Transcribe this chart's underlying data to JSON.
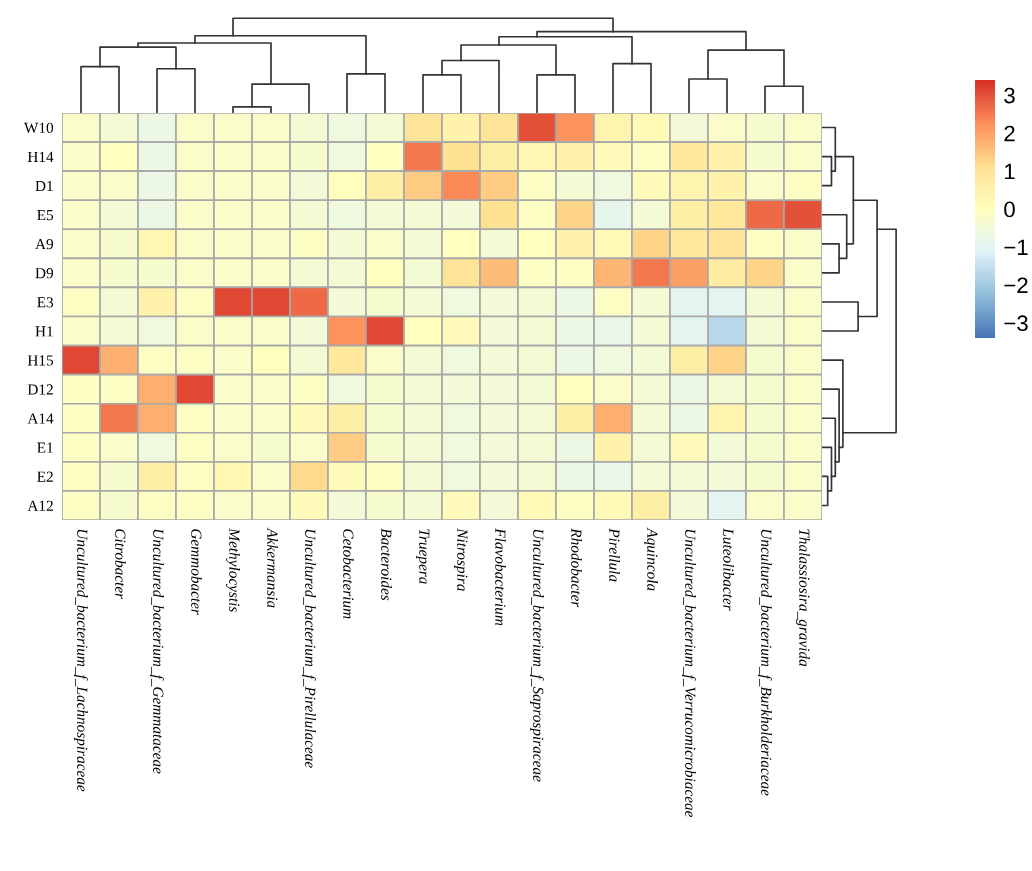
{
  "chart_data": {
    "type": "heatmap",
    "categories": [
      "Uncultured_bacterium_f_Lachnospiraceae",
      "Citrobacter",
      "Uncultured_bacterium_f_Gemmataceae",
      "Gemmobacter",
      "Methylocystis",
      "Akkermansia",
      "Uncultured_bacterium_f_Pirellulaceae",
      "Cetobacterium",
      "Bacteroides",
      "Truepera",
      "Nitrospira",
      "Flavobacterium",
      "Uncultured_bacterium_f_Saprospiraceae",
      "Rhodobacter",
      "Pirellula",
      "Aquincola",
      "Uncultured_bacterium_f_Verrucomicrobiaceae",
      "Luteolibacter",
      "Uncultured_bacterium_f_Burkholderiaceae",
      "Thalassiosira_gravida"
    ],
    "y_categories": [
      "W10",
      "H14",
      "D1",
      "E5",
      "A9",
      "D9",
      "E3",
      "H1",
      "H15",
      "D12",
      "A14",
      "E1",
      "E2",
      "A12"
    ],
    "cells": [
      [
        -0.2,
        -0.4,
        -0.7,
        -0.2,
        -0.2,
        -0.2,
        -0.4,
        -0.6,
        -0.4,
        1.0,
        0.5,
        1.0,
        3.0,
        2.2,
        0.4,
        0.2,
        -0.5,
        -0.2,
        -0.3,
        -0.2
      ],
      [
        -0.2,
        0,
        -0.7,
        -0.2,
        -0.2,
        -0.2,
        -0.3,
        -0.6,
        0,
        2.5,
        1.1,
        0.6,
        0.3,
        0.5,
        0.1,
        -0.1,
        0.8,
        0.5,
        -0.3,
        -0.2
      ],
      [
        -0.2,
        -0.2,
        -0.7,
        -0.2,
        -0.2,
        -0.2,
        -0.5,
        0,
        0.6,
        1.4,
        2.3,
        1.4,
        -0.1,
        -0.4,
        -0.6,
        0.1,
        0.4,
        0.5,
        -0.2,
        -0.1
      ],
      [
        -0.2,
        -0.4,
        -0.7,
        -0.2,
        -0.2,
        -0.2,
        -0.4,
        -0.6,
        -0.4,
        -0.4,
        -0.5,
        1.1,
        -0.1,
        1.3,
        -0.9,
        -0.4,
        0.6,
        0.8,
        2.7,
        3.0
      ],
      [
        -0.2,
        -0.3,
        0.3,
        -0.2,
        -0.2,
        -0.2,
        -0.1,
        -0.4,
        -0.2,
        -0.4,
        0,
        -0.4,
        0,
        0.5,
        0.2,
        1.3,
        0.8,
        1.0,
        -0.1,
        -0.2
      ],
      [
        -0.2,
        -0.3,
        -0.3,
        -0.2,
        -0.2,
        -0.2,
        -0.4,
        -0.4,
        0,
        -0.4,
        1.0,
        1.6,
        -0.1,
        -0.1,
        1.7,
        2.5,
        2.0,
        0.7,
        1.3,
        -0.2
      ],
      [
        -0.1,
        -0.4,
        0.5,
        -0.1,
        3.1,
        3.1,
        2.7,
        -0.5,
        -0.3,
        -0.4,
        -0.6,
        -0.5,
        -0.4,
        -0.7,
        -0.1,
        -0.4,
        -1.0,
        -1.0,
        -0.4,
        -0.2
      ],
      [
        -0.2,
        -0.4,
        -0.6,
        -0.2,
        -0.2,
        -0.2,
        -0.5,
        2.2,
        3.1,
        0,
        0.1,
        -0.5,
        -0.4,
        -0.7,
        -0.8,
        -0.4,
        -1.0,
        -1.7,
        -0.4,
        -0.2
      ],
      [
        3.1,
        1.8,
        -0.1,
        -0.1,
        -0.2,
        0,
        -0.4,
        0.8,
        -0.2,
        -0.4,
        -0.6,
        -0.5,
        -0.4,
        -0.7,
        -0.6,
        -0.4,
        0.6,
        1.3,
        -0.3,
        -0.2
      ],
      [
        -0.1,
        -0.1,
        1.8,
        3.1,
        -0.2,
        -0.2,
        -0.1,
        -0.6,
        -0.3,
        -0.4,
        -0.5,
        -0.5,
        -0.4,
        0,
        -0.2,
        -0.4,
        -0.7,
        -0.4,
        -0.3,
        -0.2
      ],
      [
        -0.1,
        2.5,
        1.8,
        -0.1,
        -0.2,
        -0.2,
        0.1,
        0.6,
        -0.3,
        -0.4,
        -0.6,
        -0.5,
        -0.4,
        0.6,
        1.8,
        -0.4,
        -0.7,
        0.4,
        -0.3,
        -0.2
      ],
      [
        -0.1,
        -0.2,
        -0.6,
        -0.1,
        -0.2,
        -0.3,
        -0.2,
        1.4,
        -0.3,
        -0.4,
        -0.6,
        -0.5,
        -0.4,
        -0.7,
        0.5,
        -0.4,
        0.1,
        -0.5,
        -0.3,
        -0.2
      ],
      [
        -0.1,
        -0.3,
        0.6,
        -0.1,
        0.3,
        -0.2,
        1.2,
        0.1,
        -0.1,
        -0.4,
        -0.6,
        -0.5,
        -0.4,
        -0.7,
        -0.8,
        -0.4,
        -0.4,
        -0.5,
        -0.3,
        -0.2
      ],
      [
        -0.1,
        -0.3,
        -0.1,
        -0.1,
        -0.2,
        -0.2,
        0.1,
        -0.5,
        -0.3,
        -0.4,
        0.1,
        -0.5,
        0.2,
        -0.1,
        0.2,
        0.6,
        -0.5,
        -1.0,
        -0.2,
        -0.2
      ]
    ],
    "clim": [
      -3.4,
      3.4
    ],
    "cticks": [
      {
        "value": 3,
        "label": "3"
      },
      {
        "value": 2,
        "label": "2"
      },
      {
        "value": 1,
        "label": "1"
      },
      {
        "value": 0,
        "label": "0"
      },
      {
        "value": -1,
        "label": "−1"
      },
      {
        "value": -2,
        "label": "−2"
      },
      {
        "value": -3,
        "label": "−3"
      }
    ]
  }
}
